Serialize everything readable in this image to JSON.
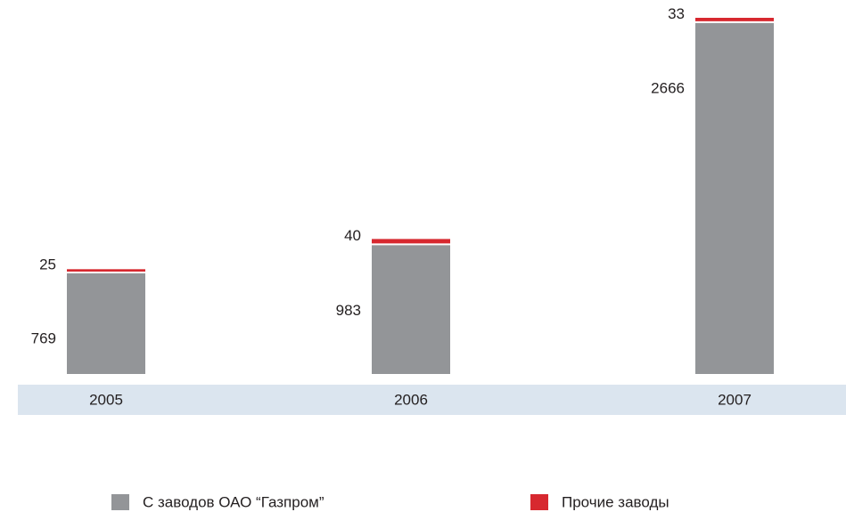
{
  "chart_data": {
    "type": "stacked_bar",
    "categories": [
      "2005",
      "2006",
      "2007"
    ],
    "series": [
      {
        "name": "С заводов ОАО “Газпром”",
        "color": "#939598",
        "values": [
          769,
          983,
          2666
        ]
      },
      {
        "name": "Прочие заводы",
        "color": "#d7282f",
        "values": [
          25,
          40,
          33
        ]
      }
    ]
  }
}
